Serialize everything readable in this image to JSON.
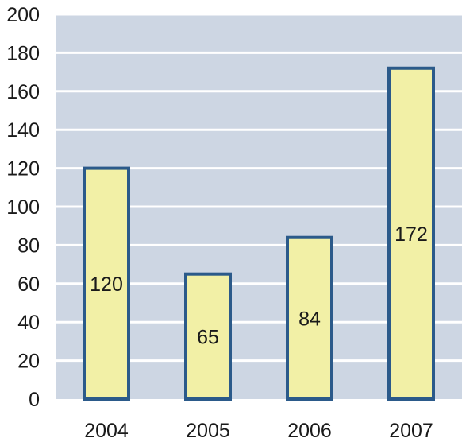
{
  "chart_data": {
    "type": "bar",
    "categories": [
      "2004",
      "2005",
      "2006",
      "2007"
    ],
    "values": [
      120,
      65,
      84,
      172
    ],
    "data_labels": [
      "120",
      "65",
      "84",
      "172"
    ],
    "ylim": [
      0,
      200
    ],
    "y_ticks": [
      "0",
      "20",
      "40",
      "60",
      "80",
      "100",
      "120",
      "140",
      "160",
      "180",
      "200"
    ],
    "grid": true,
    "colors": {
      "plot_background": "#cdd6e3",
      "gridline": "#ffffff",
      "bar_fill": "#f2f0a6",
      "bar_stroke": "#2b5a8a"
    }
  }
}
